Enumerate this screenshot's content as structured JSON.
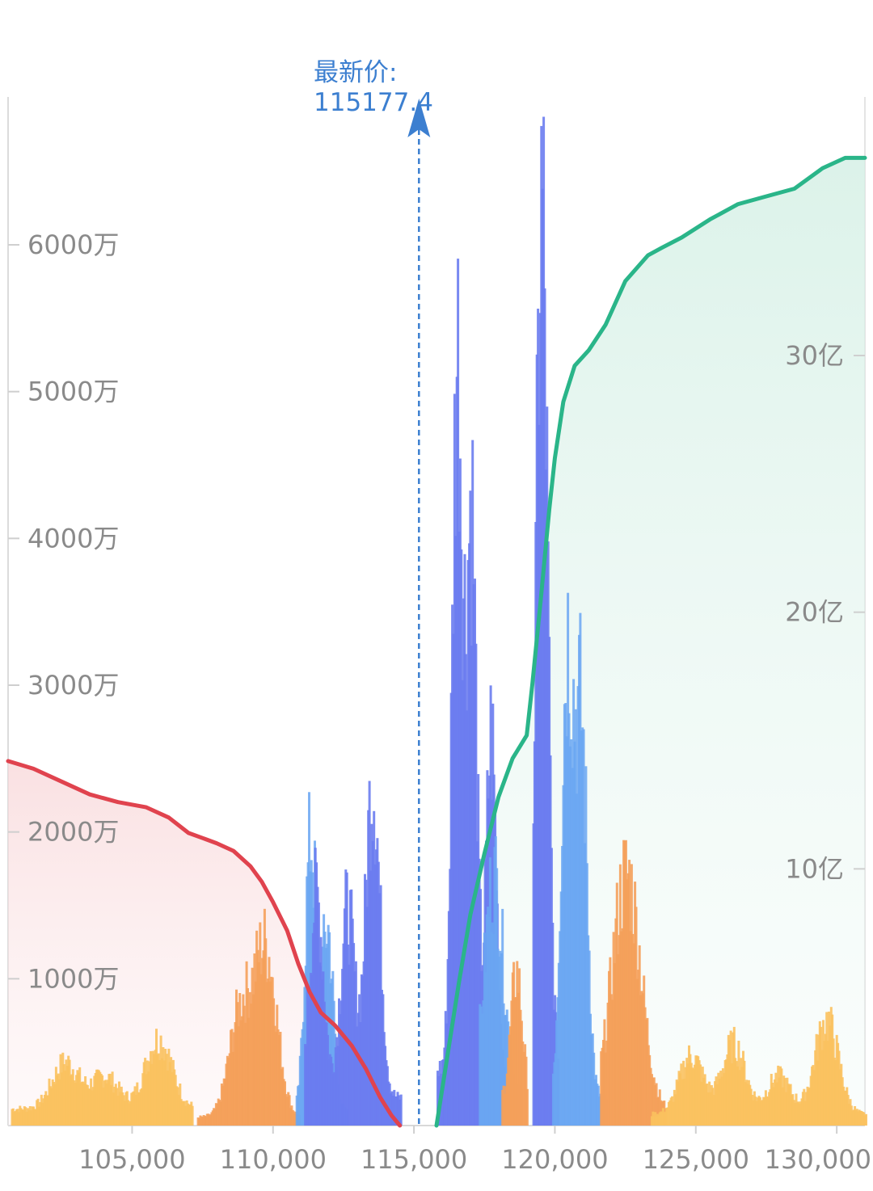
{
  "chart_data": {
    "type": "bar",
    "latest_price": {
      "label": "最新价",
      "value_text": "115177.4",
      "value": 115177.4
    },
    "x_axis": {
      "range": [
        100600,
        131000
      ],
      "ticks": [
        105000,
        110000,
        115000,
        120000,
        125000,
        130000
      ],
      "tick_labels": [
        "105,000",
        "110,000",
        "115,000",
        "120,000",
        "125,000",
        "130,000"
      ]
    },
    "y_axis_left": {
      "range": [
        0,
        70000000
      ],
      "ticks": [
        10000000,
        20000000,
        30000000,
        40000000,
        50000000,
        60000000
      ],
      "tick_labels": [
        "1000万",
        "2000万",
        "3000万",
        "4000万",
        "5000万",
        "6000万"
      ]
    },
    "y_axis_right": {
      "range": [
        0,
        4000000000
      ],
      "ticks": [
        1000000000,
        2000000000,
        3000000000
      ],
      "tick_labels": [
        "10亿",
        "20亿",
        "30亿"
      ]
    },
    "colors": {
      "bid_line": "#e0434e",
      "ask_line": "#2ab589",
      "price_marker": "#3c7fd0",
      "bars_orange": "#f5a05a",
      "bars_yellow": "#fbc15e",
      "bars_blue": "#6a7cf0",
      "bars_lightblue": "#6aa6f2"
    },
    "bid_cumulative": {
      "x": [
        100600,
        101500,
        102500,
        103500,
        104500,
        105500,
        106300,
        107000,
        107500,
        108000,
        108600,
        109200,
        109600,
        110000,
        110500,
        110900,
        111300,
        111700,
        112200,
        112800,
        113300,
        113800,
        114200,
        114500
      ],
      "value": [
        1420000000,
        1390000000,
        1340000000,
        1290000000,
        1260000000,
        1240000000,
        1200000000,
        1140000000,
        1120000000,
        1100000000,
        1070000000,
        1010000000,
        950000000,
        870000000,
        760000000,
        630000000,
        520000000,
        440000000,
        390000000,
        310000000,
        220000000,
        110000000,
        40000000,
        0
      ]
    },
    "ask_cumulative": {
      "x": [
        115800,
        116200,
        116600,
        117000,
        117500,
        118000,
        118500,
        119000,
        119200,
        119500,
        119800,
        120000,
        120300,
        120700,
        121200,
        121800,
        122500,
        123300,
        123800,
        124500,
        125500,
        126500,
        127500,
        128500,
        129500,
        130300,
        131000
      ],
      "value": [
        0,
        280000000,
        560000000,
        820000000,
        1060000000,
        1280000000,
        1430000000,
        1520000000,
        1720000000,
        2050000000,
        2400000000,
        2600000000,
        2820000000,
        2960000000,
        3020000000,
        3120000000,
        3290000000,
        3390000000,
        3420000000,
        3460000000,
        3530000000,
        3590000000,
        3620000000,
        3650000000,
        3730000000,
        3770000000,
        3770000000
      ]
    },
    "bar_clusters": [
      {
        "color": "yellow",
        "x_start": 100700,
        "x_end": 107100,
        "peaks": [
          [
            102600,
            4500000
          ],
          [
            104000,
            3500000
          ],
          [
            105900,
            6200000
          ]
        ],
        "base": 1200000
      },
      {
        "color": "orange",
        "x_start": 107300,
        "x_end": 110900,
        "peaks": [
          [
            108800,
            8000000
          ],
          [
            109700,
            12500000
          ]
        ],
        "base": 600000
      },
      {
        "color": "lightblue",
        "x_start": 110800,
        "x_end": 112600,
        "peaks": [
          [
            111300,
            20500000
          ],
          [
            111900,
            14000000
          ]
        ],
        "base": 1000000
      },
      {
        "color": "blue",
        "x_start": 111100,
        "x_end": 114500,
        "peaks": [
          [
            111500,
            16500000
          ],
          [
            112600,
            15500000
          ],
          [
            113500,
            25000000
          ]
        ],
        "base": 2000000
      },
      {
        "color": "blue",
        "x_start": 115800,
        "x_end": 118200,
        "peaks": [
          [
            116500,
            55000000
          ],
          [
            117000,
            44000000
          ],
          [
            117700,
            28000000
          ]
        ],
        "base": 4000000
      },
      {
        "color": "lightblue",
        "x_start": 117300,
        "x_end": 118800,
        "peaks": [
          [
            117800,
            18000000
          ]
        ],
        "base": 2000000
      },
      {
        "color": "orange",
        "x_start": 118100,
        "x_end": 119000,
        "peaks": [
          [
            118600,
            11000000
          ]
        ],
        "base": 2000000
      },
      {
        "color": "blue",
        "x_start": 119200,
        "x_end": 120100,
        "peaks": [
          [
            119500,
            66000000
          ]
        ],
        "base": 4000000
      },
      {
        "color": "lightblue",
        "x_start": 119900,
        "x_end": 121800,
        "peaks": [
          [
            120400,
            33500000
          ],
          [
            120900,
            28000000
          ]
        ],
        "base": 2000000
      },
      {
        "color": "orange",
        "x_start": 121600,
        "x_end": 123900,
        "peaks": [
          [
            122500,
            18000000
          ]
        ],
        "base": 1000000
      },
      {
        "color": "yellow",
        "x_start": 123400,
        "x_end": 131000,
        "peaks": [
          [
            124800,
            5000000
          ],
          [
            126300,
            5800000
          ],
          [
            127900,
            3500000
          ],
          [
            129600,
            7500000
          ]
        ],
        "base": 800000
      }
    ]
  }
}
